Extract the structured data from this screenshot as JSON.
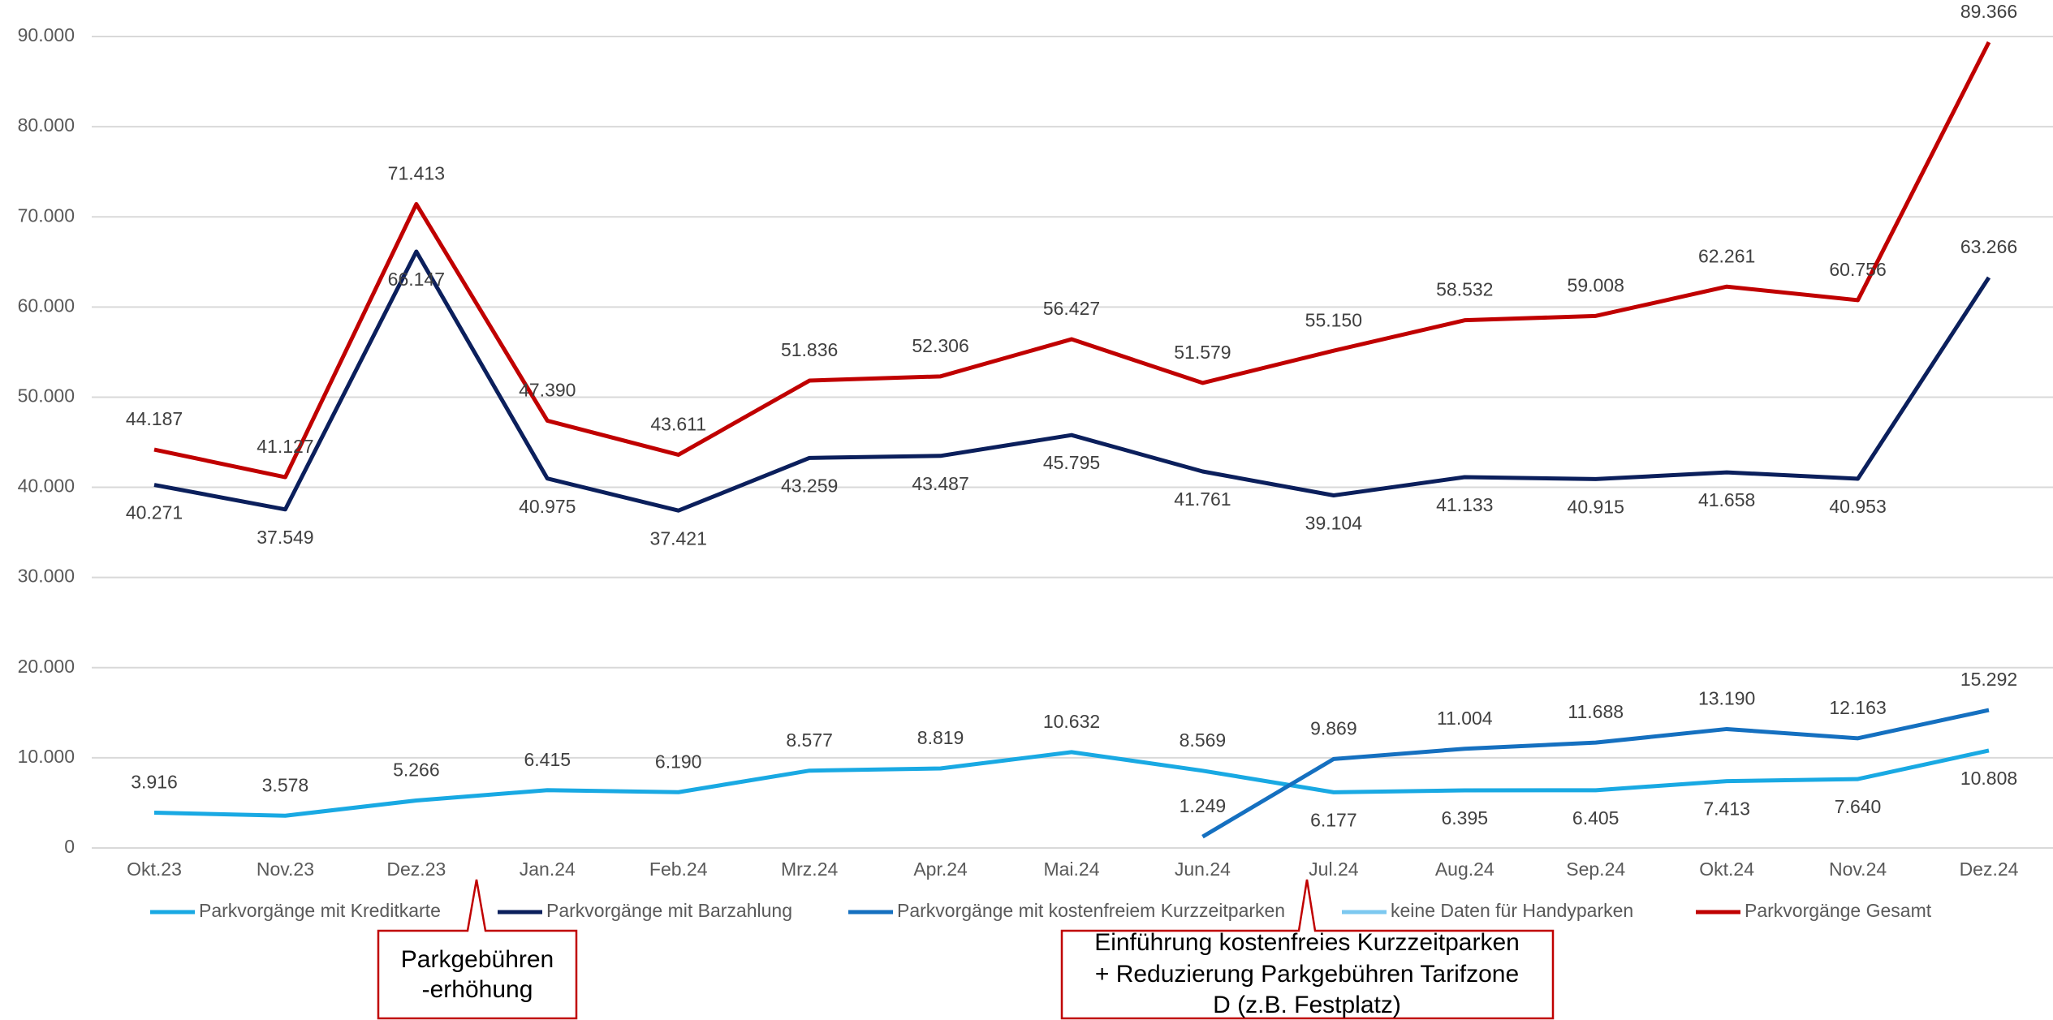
{
  "chart_data": {
    "type": "line",
    "categories": [
      "Okt.23",
      "Nov.23",
      "Dez.23",
      "Jan.24",
      "Feb.24",
      "Mrz.24",
      "Apr.24",
      "Mai.24",
      "Jun.24",
      "Jul.24",
      "Aug.24",
      "Sep.24",
      "Okt.24",
      "Nov.24",
      "Dez.24"
    ],
    "series": [
      {
        "name": "Parkvorgänge mit Kreditkarte",
        "color": "#19a9e3",
        "values": [
          3916,
          3578,
          5266,
          6415,
          6190,
          8577,
          8819,
          10632,
          8569,
          6177,
          6395,
          6405,
          7413,
          7640,
          10808
        ],
        "value_labels": [
          "3.916",
          "3.578",
          "5.266",
          "6.415",
          "6.190",
          "8.577",
          "8.819",
          "10.632",
          "8.569",
          "6.177",
          "6.395",
          "6.405",
          "7.413",
          "7.640",
          "10.808"
        ]
      },
      {
        "name": "Parkvorgänge mit Barzahlung",
        "color": "#0b1f5c",
        "values": [
          40271,
          37549,
          66147,
          40975,
          37421,
          43259,
          43487,
          45795,
          41761,
          39104,
          41133,
          40915,
          41658,
          40953,
          63266
        ],
        "value_labels": [
          "40.271",
          "37.549",
          "66.147",
          "40.975",
          "37.421",
          "43.259",
          "43.487",
          "45.795",
          "41.761",
          "39.104",
          "41.133",
          "40.915",
          "41.658",
          "40.953",
          "63.266"
        ]
      },
      {
        "name": "Parkvorgänge mit kostenfreiem Kurzzeitparken",
        "color": "#1570c0",
        "values": [
          null,
          null,
          null,
          null,
          null,
          null,
          null,
          null,
          1249,
          9869,
          11004,
          11688,
          13190,
          12163,
          15292
        ],
        "value_labels": [
          null,
          null,
          null,
          null,
          null,
          null,
          null,
          null,
          "1.249",
          "9.869",
          "11.004",
          "11.688",
          "13.190",
          "12.163",
          "15.292"
        ]
      },
      {
        "name": "keine Daten für Handyparken",
        "color": "#7cc8f0",
        "values": [
          null,
          null,
          null,
          null,
          null,
          null,
          null,
          null,
          null,
          null,
          null,
          null,
          null,
          null,
          null
        ]
      },
      {
        "name": "Parkvorgänge Gesamt",
        "color": "#c00000",
        "values": [
          44187,
          41127,
          71413,
          47390,
          43611,
          51836,
          52306,
          56427,
          51579,
          55150,
          58532,
          59008,
          62261,
          60756,
          89366
        ],
        "value_labels": [
          "44.187",
          "41.127",
          "71.413",
          "47.390",
          "43.611",
          "51.836",
          "52.306",
          "56.427",
          "51.579",
          "55.150",
          "58.532",
          "59.008",
          "62.261",
          "60.756",
          "89.366"
        ]
      }
    ],
    "ylim": [
      0,
      90000
    ],
    "yticks": [
      0,
      {
        "value": 10000,
        "label": "10.000"
      },
      {
        "value": 20000,
        "label": "20.000"
      },
      {
        "value": 30000,
        "label": "30.000"
      },
      {
        "value": 40000,
        "label": "40.000"
      },
      {
        "value": 50000,
        "label": "50.000"
      },
      {
        "value": 60000,
        "label": "60.000"
      },
      {
        "value": 70000,
        "label": "70.000"
      },
      {
        "value": 80000,
        "label": "80.000"
      },
      {
        "value": 90000,
        "label": "90.000"
      }
    ],
    "grid": true,
    "legend": "bottom",
    "annotations": [
      {
        "lines": [
          "Parkgebühren",
          "-erhöhung"
        ]
      },
      {
        "lines": [
          "Einführung kostenfreies Kurzzeitparken",
          "+ Reduzierung Parkgebühren Tarifzone",
          "D (z.B. Festplatz)"
        ]
      }
    ]
  }
}
